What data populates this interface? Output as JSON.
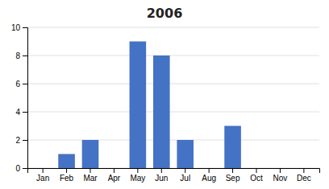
{
  "chart_data": {
    "type": "bar",
    "title": "2006",
    "categories": [
      "Jan",
      "Feb",
      "Mar",
      "Apr",
      "May",
      "Jun",
      "Jul",
      "Aug",
      "Sep",
      "Oct",
      "Nov",
      "Dec"
    ],
    "values": [
      0,
      1,
      2,
      0,
      9,
      8,
      2,
      0,
      3,
      0,
      0,
      0
    ],
    "color": "#4472C4",
    "ylim": [
      0,
      10
    ],
    "yticks": [
      0,
      2,
      4,
      6,
      8,
      10
    ],
    "grid": true
  }
}
